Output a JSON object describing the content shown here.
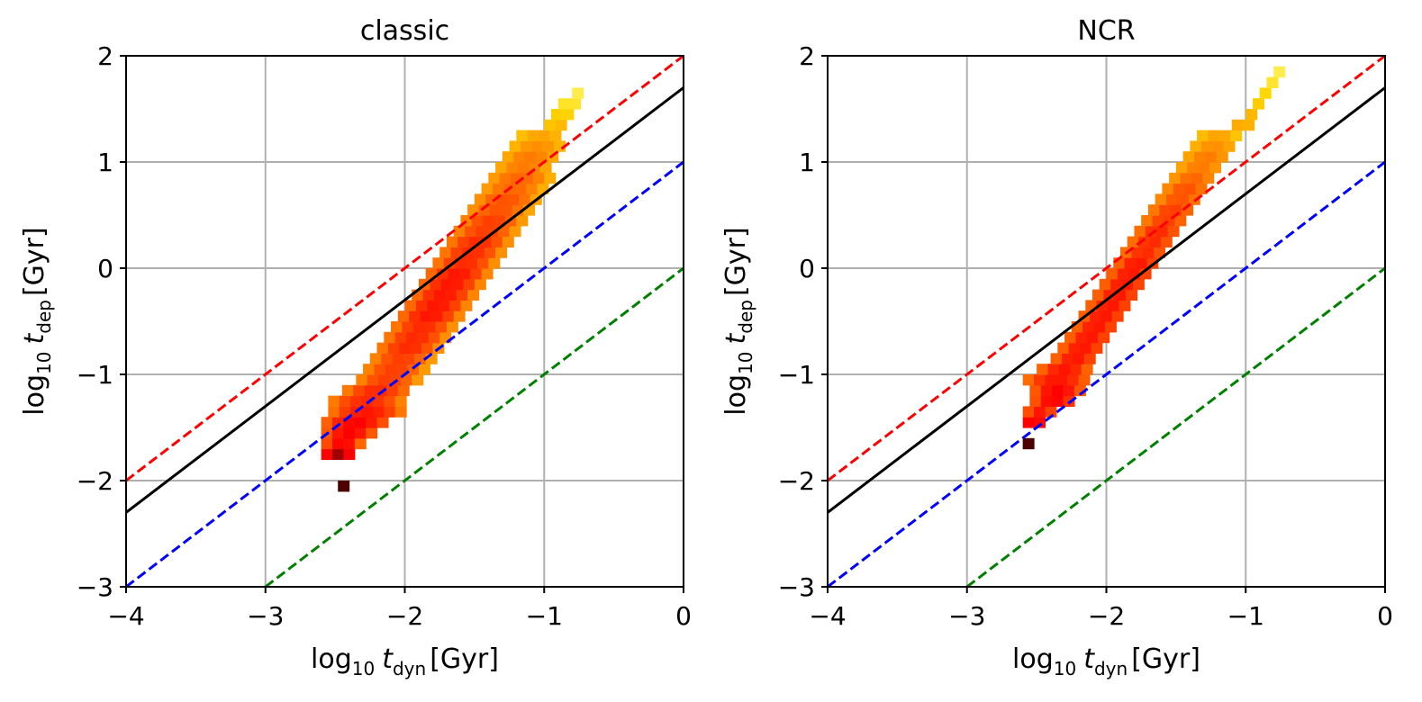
{
  "chart_data": [
    {
      "type": "heatmap",
      "title": "classic",
      "xlabel": {
        "main": "log",
        "sub": "10",
        "sym": "t",
        "symsub": "dyn",
        "unit": "[Gyr]"
      },
      "ylabel": {
        "main": "log",
        "sub": "10",
        "sym": "t",
        "symsub": "dep",
        "unit": "[Gyr]"
      },
      "xlim": [
        -4,
        0
      ],
      "ylim": [
        -3,
        2
      ],
      "xticks": [
        -4,
        -3,
        -2,
        -1,
        0
      ],
      "yticks": [
        -3,
        -2,
        -1,
        0,
        1,
        2
      ],
      "xtick_labels": [
        "−4",
        "−3",
        "−2",
        "−1",
        "0"
      ],
      "ytick_labels": [
        "−3",
        "−2",
        "−1",
        "0",
        "1",
        "2"
      ],
      "grid": true,
      "colormap": "hot",
      "bin_size": [
        0.08,
        0.1
      ],
      "lines": [
        {
          "style": "dashed",
          "color": "#ff0000",
          "x": [
            -4,
            0
          ],
          "y": [
            -2,
            2
          ]
        },
        {
          "style": "solid",
          "color": "#000000",
          "x": [
            -4,
            0
          ],
          "y": [
            -2.3,
            1.7
          ]
        },
        {
          "style": "dashed",
          "color": "#0000ff",
          "x": [
            -4,
            0
          ],
          "y": [
            -3,
            1
          ]
        },
        {
          "style": "dashed",
          "color": "#008000",
          "x": [
            -3,
            0
          ],
          "y": [
            -3,
            0
          ]
        }
      ],
      "density_ridge": [
        {
          "y": -2.05,
          "x": [
            -2.48,
            -2.4
          ],
          "level": 1.0
        },
        {
          "y": -1.75,
          "x": [
            -2.6,
            -2.35
          ],
          "level": 0.8
        },
        {
          "y": -1.65,
          "x": [
            -2.6,
            -2.3
          ],
          "level": 0.6
        },
        {
          "y": -1.55,
          "x": [
            -2.6,
            -2.2
          ],
          "level": 0.6
        },
        {
          "y": -1.45,
          "x": [
            -2.6,
            -2.1
          ],
          "level": 0.6
        },
        {
          "y": -1.35,
          "x": [
            -2.55,
            -2.0
          ],
          "level": 0.55
        },
        {
          "y": -1.25,
          "x": [
            -2.55,
            -2.0
          ],
          "level": 0.5
        },
        {
          "y": -1.15,
          "x": [
            -2.45,
            -1.95
          ],
          "level": 0.5
        },
        {
          "y": -1.05,
          "x": [
            -2.35,
            -1.9
          ],
          "level": 0.45
        },
        {
          "y": -0.95,
          "x": [
            -2.3,
            -1.85
          ],
          "level": 0.45
        },
        {
          "y": -0.85,
          "x": [
            -2.25,
            -1.8
          ],
          "level": 0.45
        },
        {
          "y": -0.75,
          "x": [
            -2.2,
            -1.75
          ],
          "level": 0.5
        },
        {
          "y": -0.65,
          "x": [
            -2.15,
            -1.7
          ],
          "level": 0.5
        },
        {
          "y": -0.55,
          "x": [
            -2.1,
            -1.65
          ],
          "level": 0.5
        },
        {
          "y": -0.45,
          "x": [
            -2.05,
            -1.6
          ],
          "level": 0.55
        },
        {
          "y": -0.35,
          "x": [
            -2.0,
            -1.55
          ],
          "level": 0.55
        },
        {
          "y": -0.25,
          "x": [
            -1.95,
            -1.5
          ],
          "level": 0.55
        },
        {
          "y": -0.15,
          "x": [
            -1.9,
            -1.45
          ],
          "level": 0.55
        },
        {
          "y": -0.05,
          "x": [
            -1.85,
            -1.4
          ],
          "level": 0.55
        },
        {
          "y": 0.05,
          "x": [
            -1.8,
            -1.35
          ],
          "level": 0.5
        },
        {
          "y": 0.15,
          "x": [
            -1.75,
            -1.3
          ],
          "level": 0.5
        },
        {
          "y": 0.25,
          "x": [
            -1.7,
            -1.25
          ],
          "level": 0.5
        },
        {
          "y": 0.35,
          "x": [
            -1.65,
            -1.2
          ],
          "level": 0.45
        },
        {
          "y": 0.45,
          "x": [
            -1.6,
            -1.15
          ],
          "level": 0.45
        },
        {
          "y": 0.55,
          "x": [
            -1.55,
            -1.1
          ],
          "level": 0.4
        },
        {
          "y": 0.65,
          "x": [
            -1.5,
            -1.05
          ],
          "level": 0.4
        },
        {
          "y": 0.75,
          "x": [
            -1.45,
            -1.0
          ],
          "level": 0.35
        },
        {
          "y": 0.85,
          "x": [
            -1.4,
            -0.95
          ],
          "level": 0.35
        },
        {
          "y": 0.95,
          "x": [
            -1.35,
            -0.95
          ],
          "level": 0.3
        },
        {
          "y": 1.05,
          "x": [
            -1.3,
            -0.9
          ],
          "level": 0.3
        },
        {
          "y": 1.15,
          "x": [
            -1.25,
            -0.85
          ],
          "level": 0.25
        },
        {
          "y": 1.25,
          "x": [
            -1.2,
            -0.85
          ],
          "level": 0.2
        },
        {
          "y": 1.35,
          "x": [
            -1.0,
            -0.8
          ],
          "level": 0.15
        },
        {
          "y": 1.45,
          "x": [
            -0.95,
            -0.8
          ],
          "level": 0.1
        },
        {
          "y": 1.55,
          "x": [
            -0.9,
            -0.75
          ],
          "level": 0.05
        },
        {
          "y": 1.65,
          "x": [
            -0.8,
            -0.7
          ],
          "level": 0.02
        }
      ]
    },
    {
      "type": "heatmap",
      "title": "NCR",
      "xlabel": {
        "main": "log",
        "sub": "10",
        "sym": "t",
        "symsub": "dyn",
        "unit": "[Gyr]"
      },
      "ylabel": {
        "main": "log",
        "sub": "10",
        "sym": "t",
        "symsub": "dep",
        "unit": "[Gyr]"
      },
      "xlim": [
        -4,
        0
      ],
      "ylim": [
        -3,
        2
      ],
      "xticks": [
        -4,
        -3,
        -2,
        -1,
        0
      ],
      "yticks": [
        -3,
        -2,
        -1,
        0,
        1,
        2
      ],
      "xtick_labels": [
        "−4",
        "−3",
        "−2",
        "−1",
        "0"
      ],
      "ytick_labels": [
        "−3",
        "−2",
        "−1",
        "0",
        "1",
        "2"
      ],
      "grid": true,
      "colormap": "hot",
      "bin_size": [
        0.08,
        0.1
      ],
      "lines": [
        {
          "style": "dashed",
          "color": "#ff0000",
          "x": [
            -4,
            0
          ],
          "y": [
            -2,
            2
          ]
        },
        {
          "style": "solid",
          "color": "#000000",
          "x": [
            -4,
            0
          ],
          "y": [
            -2.3,
            1.7
          ]
        },
        {
          "style": "dashed",
          "color": "#0000ff",
          "x": [
            -4,
            0
          ],
          "y": [
            -3,
            1
          ]
        },
        {
          "style": "dashed",
          "color": "#008000",
          "x": [
            -3,
            0
          ],
          "y": [
            -3,
            0
          ]
        }
      ],
      "density_ridge": [
        {
          "y": -1.65,
          "x": [
            -2.6,
            -2.5
          ],
          "level": 1.0
        },
        {
          "y": -1.45,
          "x": [
            -2.6,
            -2.45
          ],
          "level": 0.7
        },
        {
          "y": -1.35,
          "x": [
            -2.6,
            -2.35
          ],
          "level": 0.55
        },
        {
          "y": -1.25,
          "x": [
            -2.55,
            -2.2
          ],
          "level": 0.6
        },
        {
          "y": -1.15,
          "x": [
            -2.55,
            -2.15
          ],
          "level": 0.6
        },
        {
          "y": -1.05,
          "x": [
            -2.6,
            -2.1
          ],
          "level": 0.55
        },
        {
          "y": -0.95,
          "x": [
            -2.5,
            -2.1
          ],
          "level": 0.55
        },
        {
          "y": -0.85,
          "x": [
            -2.4,
            -2.05
          ],
          "level": 0.55
        },
        {
          "y": -0.75,
          "x": [
            -2.35,
            -2.0
          ],
          "level": 0.55
        },
        {
          "y": -0.65,
          "x": [
            -2.3,
            -1.95
          ],
          "level": 0.55
        },
        {
          "y": -0.55,
          "x": [
            -2.25,
            -1.9
          ],
          "level": 0.55
        },
        {
          "y": -0.45,
          "x": [
            -2.2,
            -1.85
          ],
          "level": 0.55
        },
        {
          "y": -0.35,
          "x": [
            -2.15,
            -1.8
          ],
          "level": 0.55
        },
        {
          "y": -0.25,
          "x": [
            -2.1,
            -1.75
          ],
          "level": 0.55
        },
        {
          "y": -0.15,
          "x": [
            -2.05,
            -1.7
          ],
          "level": 0.55
        },
        {
          "y": -0.05,
          "x": [
            -2.0,
            -1.65
          ],
          "level": 0.55
        },
        {
          "y": 0.05,
          "x": [
            -1.95,
            -1.6
          ],
          "level": 0.55
        },
        {
          "y": 0.15,
          "x": [
            -1.9,
            -1.55
          ],
          "level": 0.5
        },
        {
          "y": 0.25,
          "x": [
            -1.85,
            -1.5
          ],
          "level": 0.5
        },
        {
          "y": 0.35,
          "x": [
            -1.8,
            -1.45
          ],
          "level": 0.5
        },
        {
          "y": 0.45,
          "x": [
            -1.75,
            -1.4
          ],
          "level": 0.45
        },
        {
          "y": 0.55,
          "x": [
            -1.7,
            -1.35
          ],
          "level": 0.45
        },
        {
          "y": 0.65,
          "x": [
            -1.65,
            -1.3
          ],
          "level": 0.4
        },
        {
          "y": 0.75,
          "x": [
            -1.6,
            -1.25
          ],
          "level": 0.4
        },
        {
          "y": 0.85,
          "x": [
            -1.55,
            -1.2
          ],
          "level": 0.35
        },
        {
          "y": 0.95,
          "x": [
            -1.5,
            -1.15
          ],
          "level": 0.3
        },
        {
          "y": 1.05,
          "x": [
            -1.45,
            -1.1
          ],
          "level": 0.3
        },
        {
          "y": 1.15,
          "x": [
            -1.4,
            -1.05
          ],
          "level": 0.25
        },
        {
          "y": 1.25,
          "x": [
            -1.35,
            -1.05
          ],
          "level": 0.2
        },
        {
          "y": 1.35,
          "x": [
            -1.1,
            -0.95
          ],
          "level": 0.2
        },
        {
          "y": 1.45,
          "x": [
            -1.0,
            -0.9
          ],
          "level": 0.15
        },
        {
          "y": 1.55,
          "x": [
            -0.95,
            -0.85
          ],
          "level": 0.1
        },
        {
          "y": 1.65,
          "x": [
            -0.9,
            -0.8
          ],
          "level": 0.07
        },
        {
          "y": 1.75,
          "x": [
            -0.85,
            -0.75
          ],
          "level": 0.04
        },
        {
          "y": 1.85,
          "x": [
            -0.8,
            -0.7
          ],
          "level": 0.02
        }
      ]
    }
  ]
}
